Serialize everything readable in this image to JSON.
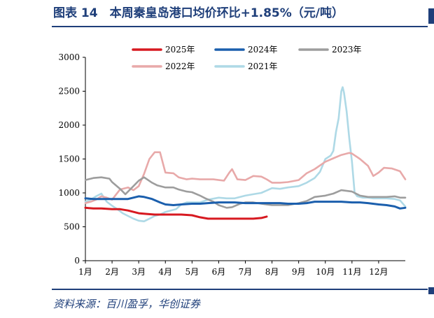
{
  "header": {
    "title": "图表 14　本周秦皇岛港口均价环比+1.85%（元/吨）"
  },
  "footer": {
    "source": "资料来源：百川盈孚，华创证券"
  },
  "chart_data": {
    "type": "line",
    "title": "",
    "xlabel": "",
    "ylabel": "",
    "ylim": [
      0,
      3000
    ],
    "yticks": [
      0,
      500,
      1000,
      1500,
      2000,
      2500,
      3000
    ],
    "xlim": [
      1,
      13
    ],
    "xtick_labels": [
      "1月",
      "2月",
      "3月",
      "4月",
      "5月",
      "6月",
      "7月",
      "8月",
      "9月",
      "10月",
      "11月",
      "12月"
    ],
    "grid": false,
    "legend": "top",
    "series": [
      {
        "name": "2025年",
        "color": "#d71920",
        "x": [
          1.0,
          1.3,
          1.6,
          2.0,
          2.3,
          2.6,
          3.0,
          3.3,
          3.6,
          4.0,
          4.3,
          4.6,
          5.0,
          5.3,
          5.6,
          6.0,
          6.3,
          6.6,
          7.0,
          7.3,
          7.6,
          7.8
        ],
        "y": [
          780,
          770,
          770,
          760,
          760,
          740,
          700,
          690,
          680,
          680,
          680,
          680,
          670,
          640,
          620,
          620,
          620,
          620,
          620,
          620,
          630,
          650
        ]
      },
      {
        "name": "2024年",
        "color": "#1b5fad",
        "x": [
          1.0,
          1.3,
          1.6,
          2.0,
          2.3,
          2.6,
          3.0,
          3.2,
          3.5,
          3.8,
          4.0,
          4.3,
          4.6,
          5.0,
          5.3,
          5.6,
          6.0,
          6.3,
          6.6,
          7.0,
          7.3,
          7.6,
          8.0,
          8.3,
          8.6,
          9.0,
          9.3,
          9.6,
          10.0,
          10.3,
          10.6,
          11.0,
          11.3,
          11.6,
          12.0,
          12.3,
          12.6,
          12.8,
          13.0
        ],
        "y": [
          920,
          910,
          910,
          910,
          910,
          910,
          950,
          940,
          910,
          860,
          830,
          820,
          830,
          840,
          840,
          850,
          860,
          860,
          860,
          850,
          850,
          850,
          850,
          850,
          840,
          840,
          850,
          870,
          870,
          870,
          870,
          860,
          860,
          850,
          830,
          820,
          800,
          770,
          780
        ]
      },
      {
        "name": "2023年",
        "color": "#9d9d9d",
        "x": [
          1.0,
          1.3,
          1.6,
          1.9,
          2.0,
          2.3,
          2.5,
          2.8,
          3.0,
          3.2,
          3.5,
          3.7,
          4.0,
          4.3,
          4.5,
          4.8,
          5.0,
          5.3,
          5.5,
          5.8,
          6.0,
          6.3,
          6.5,
          6.8,
          7.0,
          7.3,
          7.6,
          8.0,
          8.3,
          8.6,
          9.0,
          9.3,
          9.6,
          10.0,
          10.3,
          10.6,
          11.0,
          11.3,
          11.6,
          12.0,
          12.3,
          12.6,
          12.8,
          13.0
        ],
        "y": [
          1190,
          1220,
          1230,
          1210,
          1160,
          1060,
          980,
          1100,
          1180,
          1230,
          1150,
          1110,
          1080,
          1080,
          1050,
          1020,
          1010,
          960,
          920,
          870,
          820,
          780,
          790,
          840,
          860,
          860,
          840,
          820,
          820,
          820,
          850,
          880,
          940,
          960,
          990,
          1040,
          1020,
          960,
          940,
          940,
          940,
          950,
          930,
          930
        ]
      },
      {
        "name": "2022年",
        "color": "#e8a9a9",
        "x": [
          1.0,
          1.2,
          1.4,
          1.6,
          1.8,
          2.0,
          2.3,
          2.6,
          2.8,
          3.0,
          3.2,
          3.4,
          3.6,
          3.8,
          3.9,
          4.0,
          4.3,
          4.5,
          4.8,
          5.0,
          5.3,
          5.6,
          5.8,
          6.0,
          6.2,
          6.4,
          6.5,
          6.7,
          7.0,
          7.3,
          7.6,
          7.8,
          8.0,
          8.3,
          8.6,
          9.0,
          9.3,
          9.6,
          10.0,
          10.3,
          10.6,
          10.9,
          11.0,
          11.3,
          11.6,
          11.8,
          12.0,
          12.2,
          12.5,
          12.8,
          13.0
        ],
        "y": [
          850,
          870,
          900,
          950,
          930,
          900,
          1050,
          1080,
          1040,
          1100,
          1280,
          1500,
          1600,
          1600,
          1450,
          1300,
          1290,
          1230,
          1200,
          1210,
          1200,
          1200,
          1200,
          1190,
          1180,
          1300,
          1350,
          1200,
          1190,
          1250,
          1240,
          1200,
          1150,
          1150,
          1160,
          1190,
          1290,
          1350,
          1460,
          1510,
          1560,
          1590,
          1580,
          1500,
          1400,
          1250,
          1300,
          1370,
          1360,
          1320,
          1200
        ]
      },
      {
        "name": "2021年",
        "color": "#aed9e6",
        "x": [
          1.0,
          1.2,
          1.4,
          1.6,
          1.8,
          2.0,
          2.2,
          2.4,
          2.6,
          2.8,
          3.0,
          3.2,
          3.4,
          3.6,
          3.8,
          4.0,
          4.2,
          4.4,
          4.6,
          4.8,
          5.0,
          5.3,
          5.6,
          6.0,
          6.3,
          6.6,
          7.0,
          7.3,
          7.6,
          8.0,
          8.3,
          8.6,
          9.0,
          9.3,
          9.6,
          9.8,
          10.0,
          10.2,
          10.3,
          10.4,
          10.5,
          10.6,
          10.65,
          10.7,
          10.8,
          10.9,
          11.0,
          11.1,
          11.2,
          11.4,
          11.6,
          11.8,
          12.0,
          12.3,
          12.6,
          12.8,
          13.0
        ],
        "y": [
          870,
          900,
          950,
          990,
          870,
          810,
          760,
          700,
          660,
          620,
          590,
          580,
          620,
          660,
          680,
          720,
          740,
          760,
          830,
          860,
          860,
          860,
          900,
          930,
          920,
          920,
          960,
          980,
          1000,
          1070,
          1060,
          1080,
          1100,
          1150,
          1220,
          1310,
          1500,
          1550,
          1620,
          1900,
          2100,
          2500,
          2560,
          2480,
          2200,
          1800,
          1460,
          1000,
          950,
          930,
          930,
          920,
          920,
          920,
          910,
          890,
          800
        ]
      }
    ]
  }
}
